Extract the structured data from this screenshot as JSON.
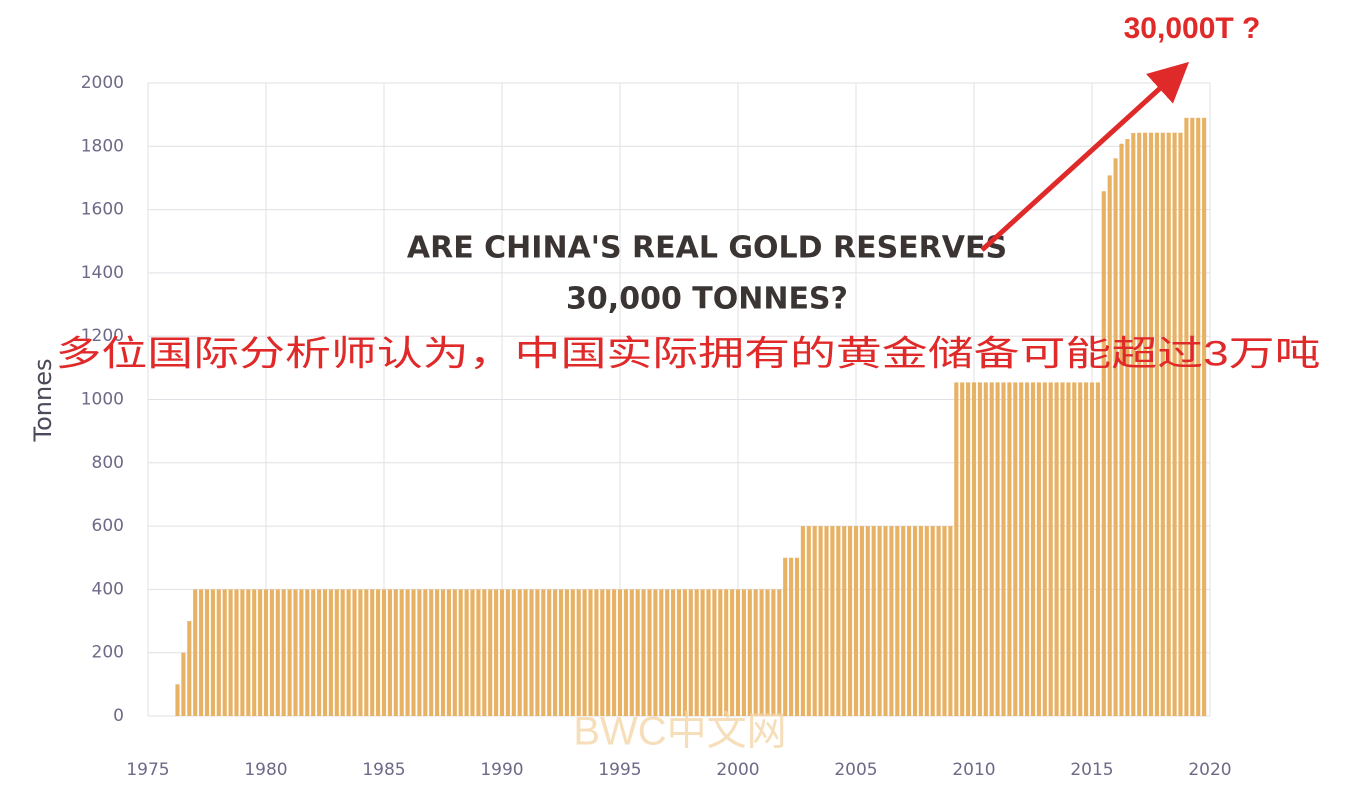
{
  "chart_data": {
    "type": "bar",
    "y_label": "Tonnes",
    "color": "#e8b265",
    "headline": [
      "ARE CHINA'S REAL GOLD RESERVES",
      "30,000 TONNES?"
    ],
    "caption": "多位国际分析师认为，中国实际拥有的黄金储备可能超过3万吨",
    "callout": "30,000T ?",
    "watermark": "BWC中文网",
    "xlim": [
      1975,
      2020
    ],
    "ylim": [
      0,
      2000
    ],
    "xticks": [
      1975,
      1980,
      1985,
      1990,
      1995,
      2000,
      2005,
      2010,
      2015,
      2020
    ],
    "yticks": [
      0,
      200,
      400,
      600,
      800,
      1000,
      1200,
      1400,
      1600,
      1800,
      2000
    ],
    "grid": true,
    "x": [
      1976.25,
      1976.5,
      1976.75,
      1977,
      1977.25,
      1977.5,
      1977.75,
      1978,
      1978.25,
      1978.5,
      1978.75,
      1979,
      1979.25,
      1979.5,
      1979.75,
      1980,
      1980.25,
      1980.5,
      1980.75,
      1981,
      1981.25,
      1981.5,
      1981.75,
      1982,
      1982.25,
      1982.5,
      1982.75,
      1983,
      1983.25,
      1983.5,
      1983.75,
      1984,
      1984.25,
      1984.5,
      1984.75,
      1985,
      1985.25,
      1985.5,
      1985.75,
      1986,
      1986.25,
      1986.5,
      1986.75,
      1987,
      1987.25,
      1987.5,
      1987.75,
      1988,
      1988.25,
      1988.5,
      1988.75,
      1989,
      1989.25,
      1989.5,
      1989.75,
      1990,
      1990.25,
      1990.5,
      1990.75,
      1991,
      1991.25,
      1991.5,
      1991.75,
      1992,
      1992.25,
      1992.5,
      1992.75,
      1993,
      1993.25,
      1993.5,
      1993.75,
      1994,
      1994.25,
      1994.5,
      1994.75,
      1995,
      1995.25,
      1995.5,
      1995.75,
      1996,
      1996.25,
      1996.5,
      1996.75,
      1997,
      1997.25,
      1997.5,
      1997.75,
      1998,
      1998.25,
      1998.5,
      1998.75,
      1999,
      1999.25,
      1999.5,
      1999.75,
      2000,
      2000.25,
      2000.5,
      2000.75,
      2001,
      2001.25,
      2001.5,
      2001.75,
      2002,
      2002.25,
      2002.5,
      2002.75,
      2003,
      2003.25,
      2003.5,
      2003.75,
      2004,
      2004.25,
      2004.5,
      2004.75,
      2005,
      2005.25,
      2005.5,
      2005.75,
      2006,
      2006.25,
      2006.5,
      2006.75,
      2007,
      2007.25,
      2007.5,
      2007.75,
      2008,
      2008.25,
      2008.5,
      2008.75,
      2009,
      2009.25,
      2009.5,
      2009.75,
      2010,
      2010.25,
      2010.5,
      2010.75,
      2011,
      2011.25,
      2011.5,
      2011.75,
      2012,
      2012.25,
      2012.5,
      2012.75,
      2013,
      2013.25,
      2013.5,
      2013.75,
      2014,
      2014.25,
      2014.5,
      2014.75,
      2015,
      2015.25,
      2015.5,
      2015.75,
      2016,
      2016.25,
      2016.5,
      2016.75,
      2017,
      2017.25,
      2017.5,
      2017.75,
      2018,
      2018.25,
      2018.5,
      2018.75,
      2019,
      2019.25,
      2019.5,
      2019.75
    ],
    "values": [
      100,
      200,
      300,
      400,
      400,
      400,
      400,
      400,
      400,
      400,
      400,
      400,
      400,
      400,
      400,
      400,
      400,
      400,
      400,
      400,
      400,
      400,
      400,
      400,
      400,
      400,
      400,
      400,
      400,
      400,
      400,
      400,
      400,
      400,
      400,
      400,
      400,
      400,
      400,
      400,
      400,
      400,
      400,
      400,
      400,
      400,
      400,
      400,
      400,
      400,
      400,
      400,
      400,
      400,
      400,
      400,
      400,
      400,
      400,
      400,
      400,
      400,
      400,
      400,
      400,
      400,
      400,
      400,
      400,
      400,
      400,
      400,
      400,
      400,
      400,
      400,
      400,
      400,
      400,
      400,
      400,
      400,
      400,
      400,
      400,
      400,
      400,
      400,
      400,
      400,
      400,
      400,
      400,
      400,
      400,
      400,
      400,
      400,
      400,
      400,
      400,
      400,
      400,
      500,
      500,
      500,
      600,
      600,
      600,
      600,
      600,
      600,
      600,
      600,
      600,
      600,
      600,
      600,
      600,
      600,
      600,
      600,
      600,
      600,
      600,
      600,
      600,
      600,
      600,
      600,
      600,
      600,
      1054,
      1054,
      1054,
      1054,
      1054,
      1054,
      1054,
      1054,
      1054,
      1054,
      1054,
      1054,
      1054,
      1054,
      1054,
      1054,
      1054,
      1054,
      1054,
      1054,
      1054,
      1054,
      1054,
      1054,
      1054,
      1658,
      1708,
      1762,
      1808,
      1823,
      1842,
      1843,
      1843,
      1843,
      1843,
      1843,
      1843,
      1843,
      1843,
      1890,
      1890,
      1890,
      1890
    ]
  }
}
